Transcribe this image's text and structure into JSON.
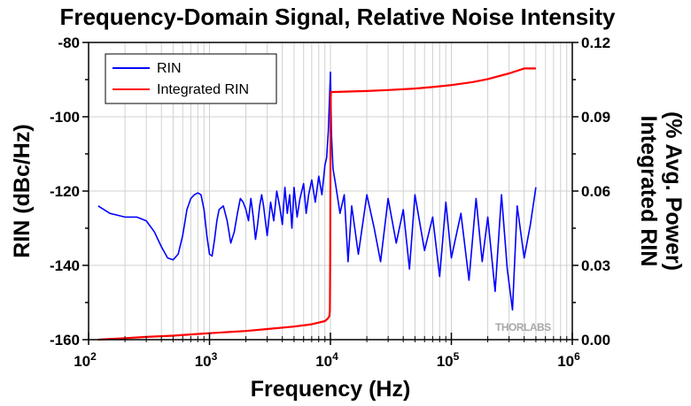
{
  "chart_data": {
    "type": "line",
    "title": "Frequency-Domain Signal, Relative Noise Intensity",
    "xlabel": "Frequency (Hz)",
    "ylabel": "RIN (dBc/Hz)",
    "y2label_line1": "Integrated RIN",
    "y2label_line2": "(% Avg. Power)",
    "xscale": "log",
    "xlim": [
      100,
      1000000
    ],
    "ylim": [
      -160,
      -80
    ],
    "y2lim": [
      0,
      0.12
    ],
    "grid": true,
    "legend_position": "top-left",
    "watermark": "THORLABS",
    "x_ticks": [
      {
        "base": "10",
        "exp": "2"
      },
      {
        "base": "10",
        "exp": "3"
      },
      {
        "base": "10",
        "exp": "4"
      },
      {
        "base": "10",
        "exp": "5"
      },
      {
        "base": "10",
        "exp": "6"
      }
    ],
    "y_ticks": [
      "-80",
      "-100",
      "-120",
      "-140",
      "-160"
    ],
    "y2_ticks": [
      "0.12",
      "0.09",
      "0.06",
      "0.03",
      "0.00"
    ],
    "series": [
      {
        "name": "RIN",
        "color": "#0000ff",
        "axis": "left",
        "x": [
          120,
          150,
          200,
          250,
          300,
          350,
          400,
          450,
          500,
          550,
          600,
          650,
          700,
          750,
          800,
          850,
          900,
          950,
          1000,
          1050,
          1100,
          1150,
          1200,
          1300,
          1400,
          1500,
          1600,
          1700,
          1800,
          1900,
          2000,
          2100,
          2200,
          2300,
          2400,
          2500,
          2600,
          2700,
          2800,
          3000,
          3200,
          3400,
          3600,
          3800,
          4000,
          4200,
          4400,
          4600,
          4800,
          5000,
          5300,
          5600,
          6000,
          6300,
          6600,
          7000,
          7500,
          8000,
          8500,
          9000,
          9300,
          9600,
          9800,
          10000,
          10200,
          10500,
          11000,
          12000,
          13000,
          14000,
          15000,
          17000,
          20000,
          23000,
          26000,
          30000,
          35000,
          40000,
          45000,
          50000,
          60000,
          70000,
          80000,
          90000,
          100000,
          120000,
          140000,
          160000,
          180000,
          200000,
          230000,
          260000,
          290000,
          320000,
          350000,
          400000,
          450000,
          500000
        ],
        "values": [
          -124,
          -126,
          -127,
          -127,
          -128,
          -131,
          -135,
          -138,
          -138.5,
          -137,
          -132,
          -125,
          -122,
          -121,
          -120.5,
          -121,
          -125,
          -132,
          -137,
          -137.5,
          -133,
          -128,
          -125,
          -124,
          -128,
          -134,
          -131,
          -126,
          -122,
          -123,
          -125,
          -128,
          -122,
          -127,
          -133,
          -129,
          -124,
          -121,
          -124,
          -132,
          -123,
          -128,
          -120,
          -124,
          -129,
          -119,
          -126,
          -121,
          -130,
          -119,
          -127,
          -122,
          -118,
          -126,
          -121,
          -117,
          -123,
          -116,
          -121,
          -113,
          -111,
          -104,
          -96,
          -88,
          -105,
          -114,
          -118,
          -126,
          -121,
          -139,
          -124,
          -137,
          -121,
          -130,
          -139,
          -122,
          -134,
          -125,
          -141,
          -121,
          -136,
          -127,
          -143,
          -123,
          -138,
          -126,
          -144,
          -122,
          -139,
          -127,
          -147,
          -121,
          -141,
          -152,
          -124,
          -138,
          -129,
          -119
        ]
      },
      {
        "name": "Integrated RIN",
        "color": "#ff0000",
        "axis": "right",
        "x": [
          120,
          200,
          300,
          500,
          700,
          1000,
          2000,
          3000,
          5000,
          7000,
          9000,
          9500,
          9800,
          9900,
          9950,
          10000,
          10050,
          10100,
          10500,
          15000,
          20000,
          30000,
          50000,
          70000,
          100000,
          150000,
          200000,
          300000,
          400000,
          500000
        ],
        "values": [
          0.0,
          0.0006,
          0.0011,
          0.0016,
          0.0021,
          0.0026,
          0.0035,
          0.0043,
          0.0053,
          0.0062,
          0.0075,
          0.0085,
          0.0095,
          0.012,
          0.03,
          0.07,
          0.098,
          0.1,
          0.1,
          0.1002,
          0.1004,
          0.1008,
          0.1014,
          0.102,
          0.1028,
          0.104,
          0.1052,
          0.1075,
          0.1095,
          0.1095
        ]
      }
    ]
  }
}
